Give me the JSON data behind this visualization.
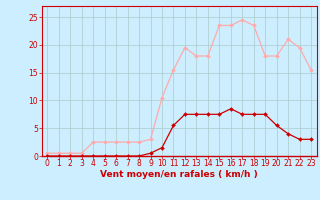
{
  "x": [
    0,
    1,
    2,
    3,
    4,
    5,
    6,
    7,
    8,
    9,
    10,
    11,
    12,
    13,
    14,
    15,
    16,
    17,
    18,
    19,
    20,
    21,
    22,
    23
  ],
  "rafales": [
    0.5,
    0.5,
    0.5,
    0.5,
    2.5,
    2.5,
    2.5,
    2.5,
    2.5,
    3,
    10.5,
    15.5,
    19.5,
    18,
    18,
    23.5,
    23.5,
    24.5,
    23.5,
    18,
    18,
    21,
    19.5,
    15.5
  ],
  "moyen": [
    0,
    0,
    0,
    0,
    0,
    0,
    0,
    0,
    0,
    0.5,
    1.5,
    5.5,
    7.5,
    7.5,
    7.5,
    7.5,
    8.5,
    7.5,
    7.5,
    7.5,
    5.5,
    4,
    3,
    3
  ],
  "color_rafales": "#ffaaaa",
  "color_moyen": "#cc0000",
  "bg_color": "#cceeff",
  "grid_color": "#aacccc",
  "xlabel": "Vent moyen/en rafales ( km/h )",
  "ylim": [
    0,
    27
  ],
  "xlim": [
    -0.5,
    23.5
  ],
  "yticks": [
    0,
    5,
    10,
    15,
    20,
    25
  ],
  "xticks": [
    0,
    1,
    2,
    3,
    4,
    5,
    6,
    7,
    8,
    9,
    10,
    11,
    12,
    13,
    14,
    15,
    16,
    17,
    18,
    19,
    20,
    21,
    22,
    23
  ],
  "tick_color": "#cc0000",
  "label_fontsize": 5.5,
  "xlabel_fontsize": 6.5
}
